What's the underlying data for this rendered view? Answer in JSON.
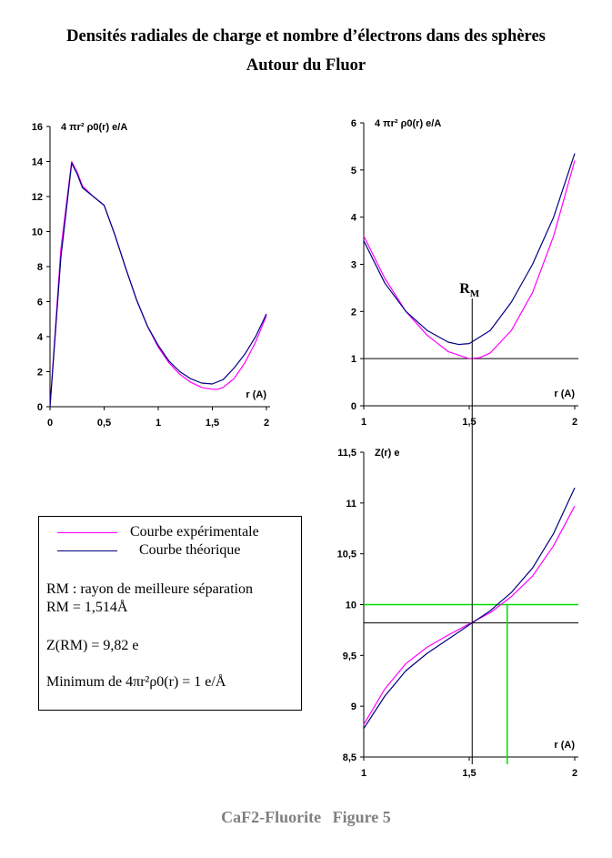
{
  "title": {
    "line1": "Densités radiales de charge et nombre d’électrons dans des sphères",
    "line2": "Autour du Fluor"
  },
  "colors": {
    "experimental": "#ff00ff",
    "theoretical": "#000080",
    "green": "#00dd00"
  },
  "chart_data": [
    {
      "id": "density-full",
      "type": "line",
      "ylabel": "4 πr² ρ0(r) e/A",
      "xlabel": "r (A)",
      "xlim": [
        0,
        2
      ],
      "ylim": [
        0,
        16
      ],
      "xticks": [
        "0",
        "0,5",
        "1",
        "1,5",
        "2"
      ],
      "yticks": [
        "0",
        "2",
        "4",
        "6",
        "8",
        "10",
        "12",
        "14",
        "16"
      ],
      "series": [
        {
          "name": "Courbe expérimentale",
          "color": "#ff00ff",
          "x": [
            0,
            0.1,
            0.2,
            0.25,
            0.3,
            0.4,
            0.5,
            0.6,
            0.7,
            0.8,
            0.9,
            1.0,
            1.1,
            1.2,
            1.3,
            1.4,
            1.5,
            1.55,
            1.6,
            1.7,
            1.8,
            1.9,
            2.0
          ],
          "y": [
            0,
            9,
            14,
            13.4,
            12.6,
            12.0,
            11.5,
            9.8,
            7.9,
            6.1,
            4.6,
            3.4,
            2.5,
            1.85,
            1.4,
            1.1,
            1.0,
            1.0,
            1.1,
            1.6,
            2.5,
            3.7,
            5.2
          ]
        },
        {
          "name": "Courbe théorique",
          "color": "#000080",
          "x": [
            0,
            0.1,
            0.2,
            0.25,
            0.3,
            0.4,
            0.5,
            0.6,
            0.7,
            0.8,
            0.9,
            1.0,
            1.1,
            1.2,
            1.3,
            1.4,
            1.5,
            1.6,
            1.7,
            1.8,
            1.9,
            2.0
          ],
          "y": [
            0,
            8.5,
            13.9,
            13.3,
            12.5,
            12.0,
            11.5,
            9.8,
            7.9,
            6.1,
            4.6,
            3.5,
            2.6,
            2.0,
            1.6,
            1.35,
            1.3,
            1.55,
            2.2,
            3.0,
            4.0,
            5.3
          ]
        }
      ]
    },
    {
      "id": "density-zoom",
      "type": "line",
      "ylabel": "4 πr² ρ0(r) e/A",
      "xlabel": "r (A)",
      "xlim": [
        1,
        2
      ],
      "ylim": [
        0,
        6
      ],
      "xticks": [
        "1",
        "1,5",
        "2"
      ],
      "yticks": [
        "0",
        "1",
        "2",
        "3",
        "4",
        "5",
        "6"
      ],
      "hline": 1,
      "vline": 1.514,
      "vline_label": "RM",
      "series": [
        {
          "name": "Courbe expérimentale",
          "color": "#ff00ff",
          "x": [
            1.0,
            1.1,
            1.2,
            1.3,
            1.4,
            1.5,
            1.55,
            1.6,
            1.7,
            1.8,
            1.9,
            2.0
          ],
          "y": [
            3.6,
            2.7,
            2.0,
            1.5,
            1.15,
            1.0,
            1.02,
            1.12,
            1.6,
            2.4,
            3.6,
            5.2
          ]
        },
        {
          "name": "Courbe théorique",
          "color": "#000080",
          "x": [
            1.0,
            1.1,
            1.2,
            1.3,
            1.4,
            1.45,
            1.5,
            1.6,
            1.7,
            1.8,
            1.9,
            2.0
          ],
          "y": [
            3.5,
            2.6,
            2.0,
            1.6,
            1.35,
            1.3,
            1.32,
            1.6,
            2.2,
            3.0,
            4.0,
            5.35
          ]
        }
      ]
    },
    {
      "id": "electron-count",
      "type": "line",
      "ylabel": "Z(r) e",
      "xlabel": "r (A)",
      "xlim": [
        1,
        2
      ],
      "ylim": [
        8.5,
        11.5
      ],
      "xticks": [
        "1",
        "1,5",
        "2"
      ],
      "yticks": [
        "8,5",
        "9",
        "9,5",
        "10",
        "10,5",
        "11",
        "11,5"
      ],
      "hline": 9.82,
      "vline": 1.514,
      "green_h": 10,
      "green_v": 1.68,
      "series": [
        {
          "name": "Courbe expérimentale",
          "color": "#ff00ff",
          "x": [
            1.0,
            1.1,
            1.2,
            1.3,
            1.4,
            1.5,
            1.6,
            1.7,
            1.8,
            1.9,
            2.0
          ],
          "y": [
            8.82,
            9.17,
            9.42,
            9.58,
            9.7,
            9.81,
            9.92,
            10.08,
            10.28,
            10.58,
            10.97
          ]
        },
        {
          "name": "Courbe théorique",
          "color": "#000080",
          "x": [
            1.0,
            1.1,
            1.2,
            1.3,
            1.4,
            1.5,
            1.6,
            1.7,
            1.8,
            1.9,
            2.0
          ],
          "y": [
            8.78,
            9.1,
            9.35,
            9.52,
            9.66,
            9.8,
            9.94,
            10.12,
            10.36,
            10.7,
            11.15
          ]
        }
      ]
    }
  ],
  "legend": {
    "exp": "Courbe expérimentale",
    "theo": "Courbe théorique",
    "rm_def": "RM : rayon de meilleure séparation",
    "rm_val": "RM = 1,514Å",
    "z_val": "Z(RM) = 9,82 e",
    "min_val": "Minimum de 4πr²ρ0(r) = 1 e/Å"
  },
  "footer": {
    "left": "CaF2-Fluorite",
    "right": "Figure 5"
  }
}
